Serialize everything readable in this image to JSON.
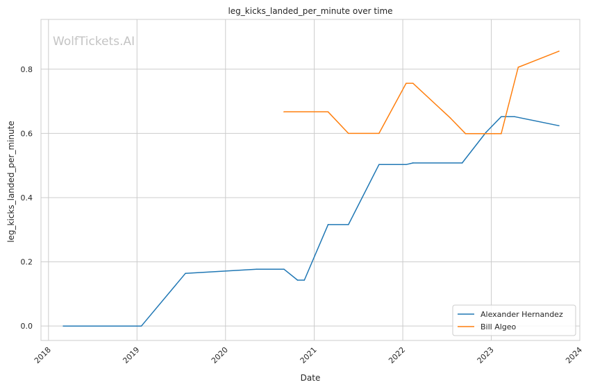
{
  "chart_data": {
    "type": "line",
    "title": "leg_kicks_landed_per_minute over time",
    "xlabel": "Date",
    "ylabel": "leg_kicks_landed_per_minute",
    "watermark": "WolfTickets.AI",
    "x_ticks": [
      "2018",
      "2019",
      "2020",
      "2021",
      "2022",
      "2023",
      "2024"
    ],
    "y_ticks": [
      "0.0",
      "0.2",
      "0.4",
      "0.6",
      "0.8"
    ],
    "xlim": [
      "2017-12-01",
      "2024-01-01"
    ],
    "ylim": [
      -0.045,
      0.955
    ],
    "grid": true,
    "legend_position": "lower-right",
    "series": [
      {
        "name": "Alexander Hernandez",
        "color": "#1f77b4",
        "points": [
          [
            "2018-03-03",
            0.0
          ],
          [
            "2019-01-19",
            0.0
          ],
          [
            "2019-07-20",
            0.164
          ],
          [
            "2020-05-09",
            0.177
          ],
          [
            "2020-08-29",
            0.177
          ],
          [
            "2020-10-24",
            0.143
          ],
          [
            "2020-11-21",
            0.143
          ],
          [
            "2021-02-27",
            0.316
          ],
          [
            "2021-05-22",
            0.316
          ],
          [
            "2021-09-25",
            0.503
          ],
          [
            "2022-01-15",
            0.503
          ],
          [
            "2022-02-12",
            0.508
          ],
          [
            "2022-09-03",
            0.508
          ],
          [
            "2022-12-10",
            0.603
          ],
          [
            "2023-02-11",
            0.652
          ],
          [
            "2023-04-08",
            0.652
          ],
          [
            "2023-10-07",
            0.624
          ]
        ]
      },
      {
        "name": "Bill Algeo",
        "color": "#ff7f0e",
        "points": [
          [
            "2020-08-29",
            0.667
          ],
          [
            "2021-02-27",
            0.667
          ],
          [
            "2021-05-22",
            0.6
          ],
          [
            "2021-09-25",
            0.6
          ],
          [
            "2022-01-15",
            0.756
          ],
          [
            "2022-02-12",
            0.756
          ],
          [
            "2022-07-16",
            0.648
          ],
          [
            "2022-09-17",
            0.599
          ],
          [
            "2023-01-14",
            0.599
          ],
          [
            "2023-02-11",
            0.599
          ],
          [
            "2023-04-22",
            0.806
          ],
          [
            "2023-10-07",
            0.856
          ]
        ]
      }
    ]
  }
}
